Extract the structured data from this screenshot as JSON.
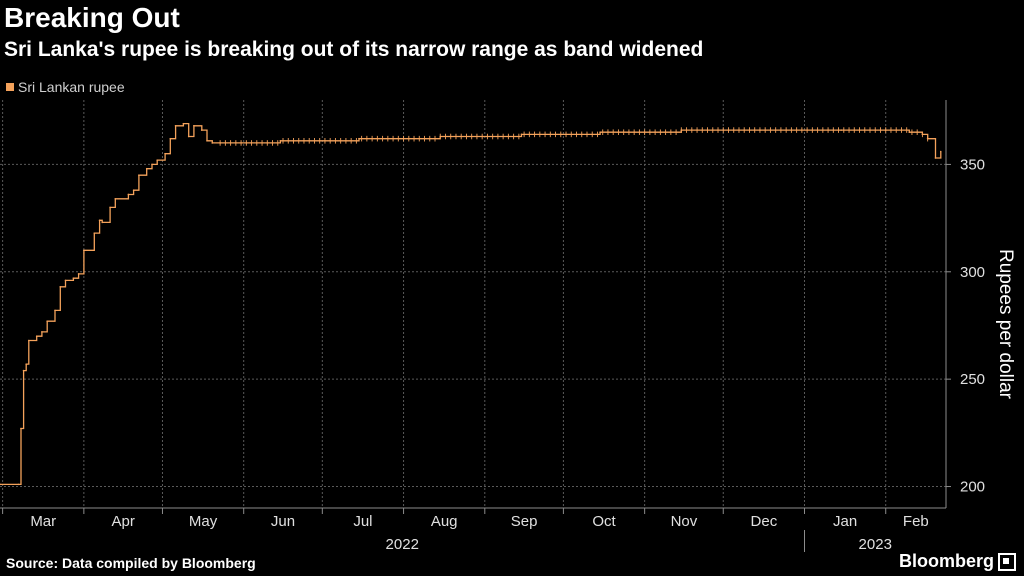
{
  "chart_data": {
    "type": "line",
    "title": "Breaking Out",
    "subtitle": "Sri Lanka's rupee is breaking out of its narrow range as band widened",
    "ylabel": "Rupees per dollar",
    "ylim": [
      190,
      380
    ],
    "yticks": [
      200,
      250,
      300,
      350
    ],
    "xlim": [
      "2022-02-28",
      "2023-02-24"
    ],
    "grid": true,
    "legend_position": "top-left",
    "months": [
      {
        "label": "Mar",
        "date": "2022-03-01"
      },
      {
        "label": "Apr",
        "date": "2022-04-01"
      },
      {
        "label": "May",
        "date": "2022-05-01"
      },
      {
        "label": "Jun",
        "date": "2022-06-01"
      },
      {
        "label": "Jul",
        "date": "2022-07-01"
      },
      {
        "label": "Aug",
        "date": "2022-08-01"
      },
      {
        "label": "Sep",
        "date": "2022-09-01"
      },
      {
        "label": "Oct",
        "date": "2022-10-01"
      },
      {
        "label": "Nov",
        "date": "2022-11-01"
      },
      {
        "label": "Dec",
        "date": "2022-12-01"
      },
      {
        "label": "Jan",
        "date": "2023-01-01"
      },
      {
        "label": "Feb",
        "date": "2023-02-01"
      }
    ],
    "years": [
      {
        "label": "2022",
        "start": "2022-02-28",
        "end": "2023-01-01"
      },
      {
        "label": "2023",
        "start": "2023-01-01",
        "end": "2023-02-24"
      }
    ],
    "series": [
      {
        "name": "Sri Lankan rupee",
        "color": "#f4a25b",
        "x": [
          "2022-02-28",
          "2022-03-07",
          "2022-03-08",
          "2022-03-09",
          "2022-03-10",
          "2022-03-11",
          "2022-03-14",
          "2022-03-16",
          "2022-03-18",
          "2022-03-21",
          "2022-03-23",
          "2022-03-25",
          "2022-03-28",
          "2022-03-30",
          "2022-04-01",
          "2022-04-05",
          "2022-04-07",
          "2022-04-08",
          "2022-04-11",
          "2022-04-13",
          "2022-04-18",
          "2022-04-20",
          "2022-04-22",
          "2022-04-25",
          "2022-04-27",
          "2022-04-29",
          "2022-05-02",
          "2022-05-04",
          "2022-05-06",
          "2022-05-09",
          "2022-05-11",
          "2022-05-13",
          "2022-05-16",
          "2022-05-18",
          "2022-05-20",
          "2022-05-23",
          "2022-06-15",
          "2022-07-15",
          "2022-08-15",
          "2022-09-15",
          "2022-10-15",
          "2022-11-15",
          "2022-12-15",
          "2023-01-15",
          "2023-02-01",
          "2023-02-10",
          "2023-02-15",
          "2023-02-17",
          "2023-02-20",
          "2023-02-22"
        ],
        "y": [
          201,
          201,
          227,
          254,
          257,
          268,
          270,
          272,
          277,
          282,
          293,
          296,
          297,
          299,
          310,
          318,
          324,
          323,
          330,
          334,
          336,
          338,
          345,
          348,
          350,
          352,
          355,
          362,
          368,
          369,
          363,
          368,
          366,
          361,
          360,
          360,
          361,
          362,
          363,
          364,
          365,
          366,
          366,
          366,
          366,
          365,
          364,
          362,
          353,
          356
        ]
      }
    ]
  },
  "footer": {
    "source": "Source: Data compiled by Bloomberg",
    "brand": "Bloomberg"
  }
}
